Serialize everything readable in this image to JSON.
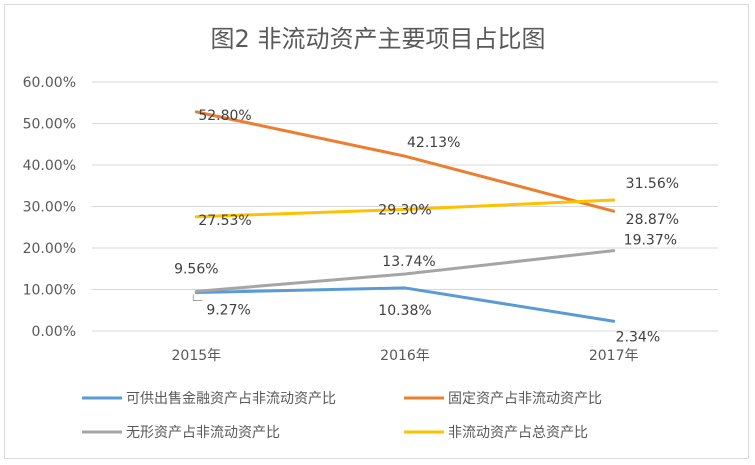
{
  "chart_data": {
    "type": "line",
    "title": "图2 非流动资产主要项目占比图",
    "categories": [
      "2015年",
      "2016年",
      "2017年"
    ],
    "yticks": [
      "0.00%",
      "10.00%",
      "20.00%",
      "30.00%",
      "40.00%",
      "50.00%",
      "60.00%"
    ],
    "ylim": [
      0,
      60
    ],
    "grid": true,
    "legend_position": "bottom",
    "series": [
      {
        "name": "可供出售金融资产占非流动资产比",
        "values": [
          9.27,
          10.38,
          2.34
        ],
        "labels": [
          "9.27%",
          "10.38%",
          "2.34%"
        ],
        "color": "#5b9bd5"
      },
      {
        "name": "固定资产占非流动资产比",
        "values": [
          52.8,
          42.13,
          28.87
        ],
        "labels": [
          "52.80%",
          "42.13%",
          "28.87%"
        ],
        "color": "#ed7d31"
      },
      {
        "name": "无形资产占非流动资产比",
        "values": [
          9.56,
          13.74,
          19.37
        ],
        "labels": [
          "9.56%",
          "13.74%",
          "19.37%"
        ],
        "color": "#a5a5a5"
      },
      {
        "name": "非流动资产占总资产比",
        "values": [
          27.53,
          29.3,
          31.56
        ],
        "labels": [
          "27.53%",
          "29.30%",
          "31.56%"
        ],
        "color": "#ffc000"
      }
    ]
  }
}
